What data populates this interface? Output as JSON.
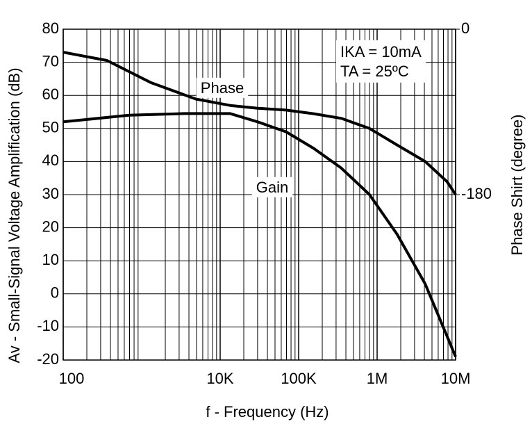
{
  "chart_data": {
    "type": "line",
    "x_label": "f - Frequency (Hz)",
    "y_label": "Av - Small-Signal Voltage Amplification (dB)",
    "y2_label": "Phase Shirt (degree)",
    "xscale": "log",
    "xlim": [
      100,
      10000000
    ],
    "xticks": [
      {
        "value": 100,
        "label": "100"
      },
      {
        "value": 10000,
        "label": "10K"
      },
      {
        "value": 100000,
        "label": "100K"
      },
      {
        "value": 1000000,
        "label": "1M"
      },
      {
        "value": 10000000,
        "label": "10M"
      }
    ],
    "ylim": [
      -20,
      80
    ],
    "yticks": [
      80,
      70,
      60,
      50,
      40,
      30,
      20,
      10,
      0,
      -10,
      -20
    ],
    "y2lim": [
      -360,
      0
    ],
    "y2ticks": [
      0,
      -180
    ],
    "grid": true,
    "series": [
      {
        "name": "Gain",
        "color": "#000000",
        "x": [
          100,
          690,
          3500,
          13400,
          30000,
          69000,
          155000,
          350000,
          800000,
          1800000,
          4100000,
          10000000
        ],
        "values": [
          52,
          54,
          54.5,
          54.5,
          52,
          49,
          44,
          38,
          30,
          18,
          3,
          -19
        ]
      },
      {
        "name": "Phase",
        "color": "#000000",
        "axis": "y2",
        "x": [
          100,
          360,
          1300,
          4900,
          13400,
          30000,
          69000,
          155000,
          350000,
          800000,
          1800000,
          4100000,
          7800000,
          10000000
        ],
        "values": [
          -25,
          -34,
          -58,
          -76,
          -83,
          -86,
          -88,
          -92,
          -97,
          -108,
          -126,
          -144,
          -166,
          -180
        ]
      }
    ],
    "annotations": [
      "IKA = 10mA",
      "TA = 25ºC"
    ]
  }
}
